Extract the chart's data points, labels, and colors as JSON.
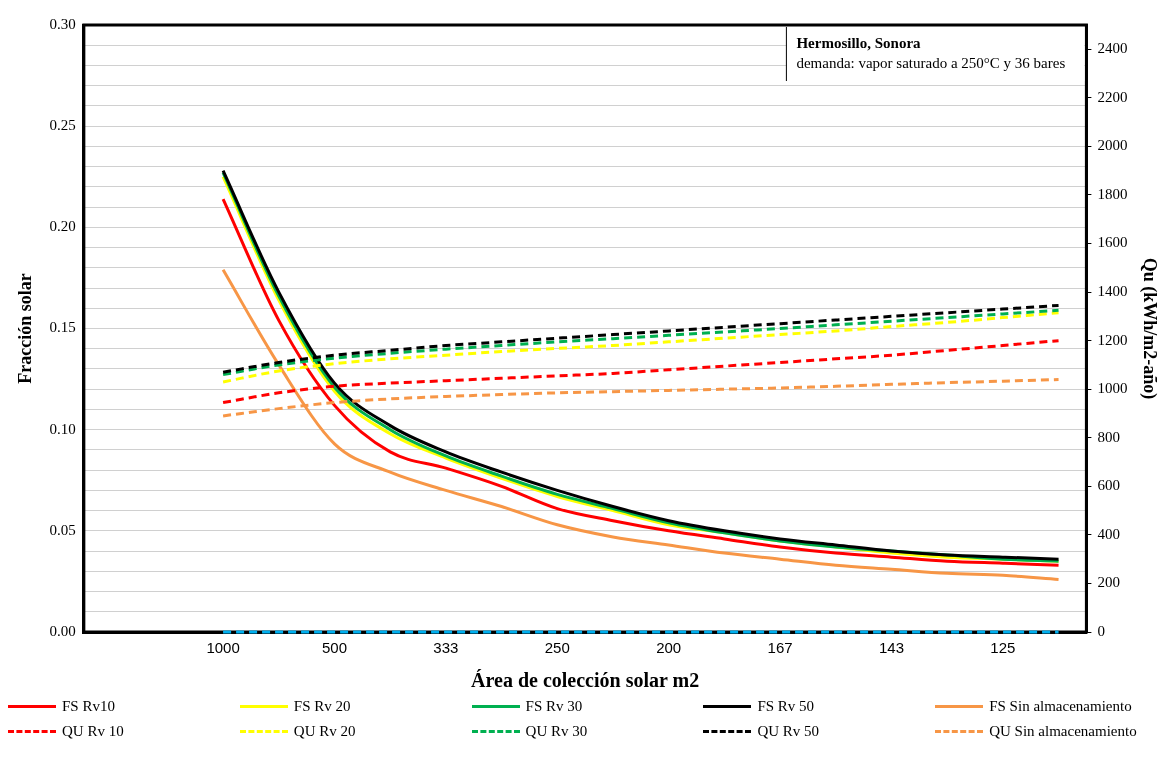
{
  "chart_data": {
    "type": "line",
    "xlabel": "Área de colección solar m2",
    "ylabel": "Fracción solar",
    "y2label": "Qu (kWh/m2-año)",
    "annotations": [
      "Hermosillo, Sonora",
      "demanda: vapor saturado a 250°C y 36 bares"
    ],
    "categories": [
      null,
      null,
      "1000",
      null,
      "500",
      null,
      "333",
      null,
      "250",
      null,
      "200",
      null,
      "167",
      null,
      "143",
      null,
      "125",
      null
    ],
    "ylim": [
      0,
      0.3
    ],
    "yticks": [
      {
        "value": 0,
        "label": "0.00"
      },
      {
        "value": 0.01,
        "label": null
      },
      {
        "value": 0.02,
        "label": null
      },
      {
        "value": 0.03,
        "label": null
      },
      {
        "value": 0.04,
        "label": null
      },
      {
        "value": 0.05,
        "label": "0.05"
      },
      {
        "value": 0.06,
        "label": null
      },
      {
        "value": 0.07,
        "label": null
      },
      {
        "value": 0.08,
        "label": null
      },
      {
        "value": 0.09,
        "label": null
      },
      {
        "value": 0.1,
        "label": "0.10"
      },
      {
        "value": 0.11,
        "label": null
      },
      {
        "value": 0.12,
        "label": null
      },
      {
        "value": 0.13,
        "label": null
      },
      {
        "value": 0.14,
        "label": null
      },
      {
        "value": 0.15,
        "label": "0.15"
      },
      {
        "value": 0.16,
        "label": null
      },
      {
        "value": 0.17,
        "label": null
      },
      {
        "value": 0.18,
        "label": null
      },
      {
        "value": 0.19,
        "label": null
      },
      {
        "value": 0.2,
        "label": "0.20"
      },
      {
        "value": 0.21,
        "label": null
      },
      {
        "value": 0.22,
        "label": null
      },
      {
        "value": 0.23,
        "label": null
      },
      {
        "value": 0.24,
        "label": null
      },
      {
        "value": 0.25,
        "label": "0.25"
      },
      {
        "value": 0.26,
        "label": null
      },
      {
        "value": 0.27,
        "label": null
      },
      {
        "value": 0.28,
        "label": null
      },
      {
        "value": 0.29,
        "label": null
      },
      {
        "value": 0.3,
        "label": "0.30"
      }
    ],
    "y2lim": [
      0,
      2500
    ],
    "y2ticks": [
      0,
      200,
      400,
      600,
      800,
      1000,
      1200,
      1400,
      1600,
      1800,
      2000,
      2200,
      2400
    ],
    "grid": "y",
    "legend": "bottom",
    "marker": "none",
    "series": [
      {
        "name": "FS Rv10",
        "color": "#ff0000",
        "line_style": "solid",
        "values": [
          null,
          null,
          0.214,
          0.154,
          0.112,
          0.089,
          0.081,
          0.072,
          0.061,
          0.055,
          0.05,
          0.046,
          0.042,
          0.039,
          0.037,
          0.035,
          0.034,
          0.033
        ]
      },
      {
        "name": "FS Rv 20",
        "color": "#ffff00",
        "line_style": "solid",
        "values": [
          null,
          null,
          0.225,
          0.164,
          0.119,
          0.098,
          0.086,
          0.076,
          0.067,
          0.06,
          0.053,
          0.049,
          0.045,
          0.042,
          0.039,
          0.037,
          0.036,
          0.035
        ]
      },
      {
        "name": "FS Rv 30",
        "color": "#00b050",
        "line_style": "solid",
        "values": [
          null,
          null,
          0.227,
          0.166,
          0.121,
          0.1,
          0.087,
          0.077,
          0.068,
          0.061,
          0.054,
          0.049,
          0.045,
          0.042,
          0.04,
          0.038,
          0.036,
          0.035
        ]
      },
      {
        "name": "FS Rv 50",
        "color": "#000000",
        "line_style": "solid",
        "values": [
          null,
          null,
          0.228,
          0.168,
          0.123,
          0.102,
          0.089,
          0.079,
          0.07,
          0.062,
          0.055,
          0.05,
          0.046,
          0.043,
          0.04,
          0.038,
          0.037,
          0.036
        ]
      },
      {
        "name": "FS Sin almacenamiento",
        "color": "#f79646",
        "line_style": "solid",
        "values": [
          null,
          null,
          0.179,
          0.132,
          0.093,
          0.079,
          0.07,
          0.062,
          0.053,
          0.047,
          0.043,
          0.039,
          0.036,
          0.033,
          0.031,
          0.029,
          0.028,
          0.026
        ]
      },
      {
        "name": "QU Rv 10",
        "color": "#ff0000",
        "line_style": "dashed",
        "axis": "y2",
        "values": [
          null,
          null,
          945,
          985,
          1012,
          1025,
          1035,
          1045,
          1055,
          1065,
          1080,
          1095,
          1110,
          1125,
          1140,
          1160,
          1180,
          1200
        ]
      },
      {
        "name": "QU Rv 20",
        "color": "#ffff00",
        "line_style": "dashed",
        "axis": "y2",
        "values": [
          null,
          null,
          1030,
          1075,
          1105,
          1125,
          1140,
          1155,
          1168,
          1180,
          1195,
          1210,
          1225,
          1240,
          1258,
          1275,
          1295,
          1315
        ]
      },
      {
        "name": "QU Rv 30",
        "color": "#00b050",
        "line_style": "dashed",
        "axis": "y2",
        "values": [
          null,
          null,
          1060,
          1100,
          1128,
          1148,
          1165,
          1180,
          1195,
          1208,
          1222,
          1236,
          1250,
          1265,
          1280,
          1295,
          1310,
          1325
        ]
      },
      {
        "name": "QU Rv 50",
        "color": "#000000",
        "line_style": "dashed",
        "axis": "y2",
        "values": [
          null,
          null,
          1070,
          1110,
          1140,
          1160,
          1180,
          1195,
          1210,
          1225,
          1240,
          1255,
          1270,
          1285,
          1300,
          1315,
          1330,
          1345
        ]
      },
      {
        "name": "QU Sin almacenamiento",
        "color": "#f79646",
        "line_style": "dashed",
        "axis": "y2",
        "values": [
          null,
          null,
          890,
          920,
          945,
          960,
          970,
          978,
          985,
          990,
          995,
          1000,
          1005,
          1012,
          1020,
          1027,
          1033,
          1040
        ]
      },
      {
        "color": "#00b0f0",
        "line_style": "dashed",
        "values": [
          null,
          null,
          0,
          0,
          0,
          0,
          0,
          0,
          0,
          0,
          0,
          0,
          0,
          0,
          0,
          0,
          0,
          0
        ]
      }
    ]
  }
}
